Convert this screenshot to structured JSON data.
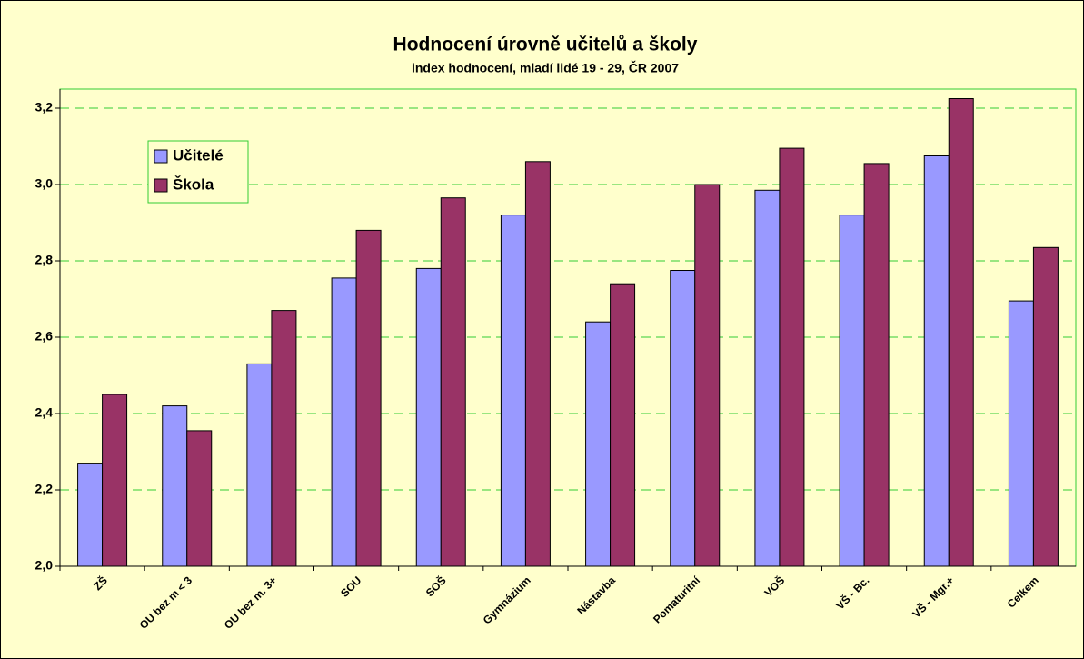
{
  "chart_data": {
    "type": "bar",
    "title": "Hodnocení úrovně učitelů a školy",
    "subtitle": "index hodnocení, mladí lidé 19 - 29, ČR 2007",
    "categories": [
      "ZŠ",
      "OU bez m < 3",
      "OU bez m. 3+",
      "SOU",
      "SOŠ",
      "Gymnázium",
      "Nástavba",
      "Pomaturitní",
      "VOŠ",
      "VŠ - Bc.",
      "VŠ - Mgr.+",
      "Celkem"
    ],
    "series": [
      {
        "name": "Učitelé",
        "color": "#9999ff",
        "values": [
          2.27,
          2.42,
          2.53,
          2.755,
          2.78,
          2.92,
          2.64,
          2.775,
          2.985,
          2.92,
          3.075,
          2.695
        ]
      },
      {
        "name": "Škola",
        "color": "#993366",
        "values": [
          2.45,
          2.355,
          2.67,
          2.88,
          2.965,
          3.06,
          2.74,
          3.0,
          3.095,
          3.055,
          3.225,
          2.835
        ]
      }
    ],
    "ylim": [
      2.0,
      3.25
    ],
    "yticks": [
      {
        "value": 2.0,
        "label": "2,0"
      },
      {
        "value": 2.2,
        "label": "2,2"
      },
      {
        "value": 2.4,
        "label": "2,4"
      },
      {
        "value": 2.6,
        "label": "2,6"
      },
      {
        "value": 2.8,
        "label": "2,8"
      },
      {
        "value": 3.0,
        "label": "3,0"
      },
      {
        "value": 3.2,
        "label": "3,2"
      }
    ],
    "grid": true,
    "legend": "top-left"
  }
}
